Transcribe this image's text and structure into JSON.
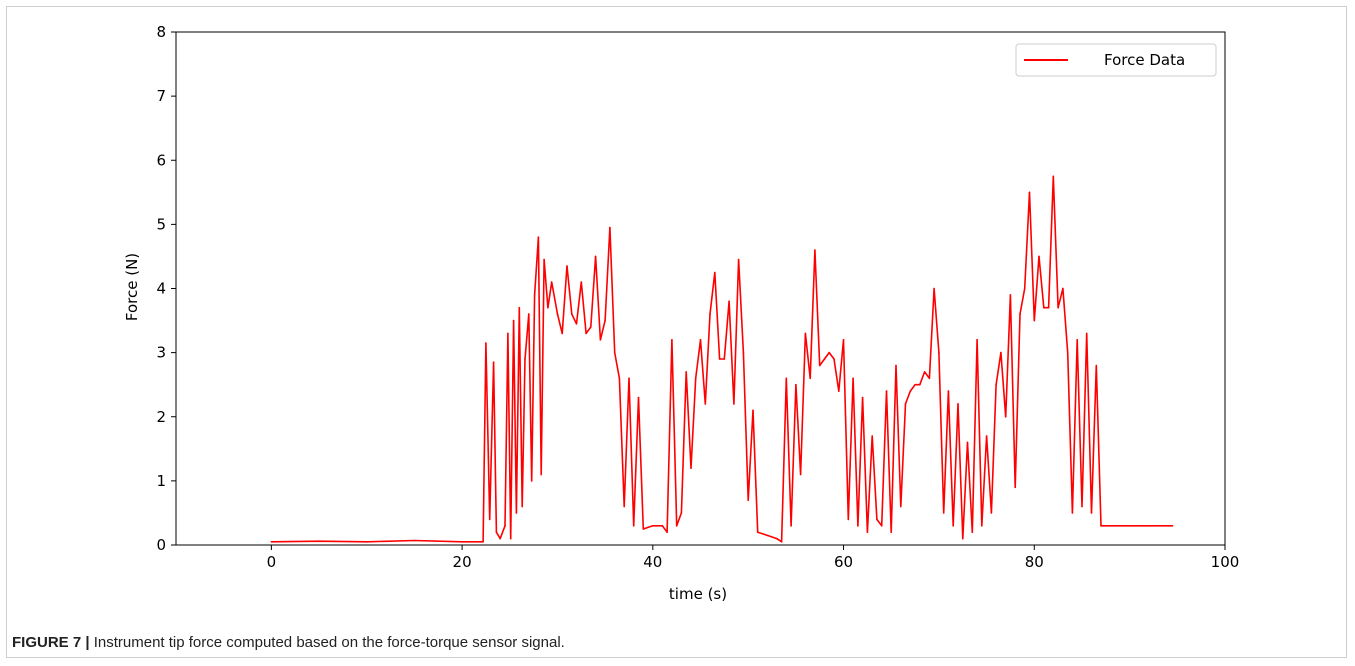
{
  "caption": {
    "label": "FIGURE 7 |",
    "text": "Instrument tip force computed based on the force-torque sensor signal."
  },
  "chart_data": {
    "type": "line",
    "title": "",
    "xlabel": "time (s)",
    "ylabel": "Force (N)",
    "xlim": [
      -10,
      100
    ],
    "ylim": [
      0,
      8
    ],
    "x_ticks": [
      0,
      20,
      40,
      60,
      80,
      100
    ],
    "y_ticks": [
      0,
      1,
      2,
      3,
      4,
      5,
      6,
      7,
      8
    ],
    "grid": false,
    "legend_position": "top-right",
    "series": [
      {
        "name": "Force Data",
        "color": "#ff0000",
        "x": [
          0,
          5,
          10,
          15,
          20,
          22.2,
          22.5,
          22.9,
          23.3,
          23.6,
          24,
          24.5,
          24.8,
          25.1,
          25.4,
          25.7,
          26,
          26.3,
          26.6,
          27,
          27.3,
          27.6,
          28,
          28.3,
          28.6,
          29,
          29.4,
          30,
          30.5,
          31,
          31.5,
          32,
          32.5,
          33,
          33.5,
          34,
          34.5,
          35,
          35.5,
          36,
          36.5,
          37,
          37.5,
          38,
          38.5,
          39,
          40,
          41,
          41.5,
          42,
          42.5,
          43,
          43.5,
          44,
          44.5,
          45,
          45.5,
          46,
          46.5,
          47,
          47.5,
          48,
          48.5,
          49,
          49.5,
          50,
          50.5,
          51,
          52,
          53,
          53.5,
          54,
          54.5,
          55,
          55.5,
          56,
          56.5,
          57,
          57.5,
          58,
          58.5,
          59,
          59.5,
          60,
          60.5,
          61,
          61.5,
          62,
          62.5,
          63,
          63.5,
          64,
          64.5,
          65,
          65.5,
          66,
          66.5,
          67,
          67.5,
          68,
          68.5,
          69,
          69.5,
          70,
          70.5,
          71,
          71.5,
          72,
          72.5,
          73,
          73.5,
          74,
          74.5,
          75,
          75.5,
          76,
          76.5,
          77,
          77.5,
          78,
          78.5,
          79,
          79.5,
          80,
          80.5,
          81,
          81.5,
          82,
          82.5,
          83,
          83.5,
          84,
          84.5,
          85,
          85.5,
          86,
          86.5,
          87,
          88,
          90,
          92,
          94.5
        ],
        "values": [
          0.05,
          0.06,
          0.05,
          0.07,
          0.05,
          0.05,
          3.15,
          0.4,
          2.85,
          0.2,
          0.1,
          0.3,
          3.3,
          0.1,
          3.5,
          0.5,
          3.7,
          0.6,
          2.9,
          3.6,
          1.0,
          3.9,
          4.8,
          1.1,
          4.45,
          3.7,
          4.1,
          3.6,
          3.3,
          4.35,
          3.6,
          3.45,
          4.1,
          3.3,
          3.4,
          4.5,
          3.2,
          3.5,
          4.95,
          3.0,
          2.6,
          0.6,
          2.6,
          0.3,
          2.3,
          0.25,
          0.3,
          0.3,
          0.2,
          3.2,
          0.3,
          0.5,
          2.7,
          1.2,
          2.6,
          3.2,
          2.2,
          3.6,
          4.25,
          2.9,
          2.9,
          3.8,
          2.2,
          4.45,
          3.0,
          0.7,
          2.1,
          0.2,
          0.15,
          0.1,
          0.05,
          2.6,
          0.3,
          2.5,
          1.1,
          3.3,
          2.6,
          4.6,
          2.8,
          2.9,
          3.0,
          2.9,
          2.4,
          3.2,
          0.4,
          2.6,
          0.3,
          2.3,
          0.2,
          1.7,
          0.4,
          0.3,
          2.4,
          0.2,
          2.8,
          0.6,
          2.2,
          2.4,
          2.5,
          2.5,
          2.7,
          2.6,
          4.0,
          3.0,
          0.5,
          2.4,
          0.3,
          2.2,
          0.1,
          1.6,
          0.2,
          3.2,
          0.3,
          1.7,
          0.5,
          2.5,
          3.0,
          2.0,
          3.9,
          0.9,
          3.6,
          4.0,
          5.5,
          3.5,
          4.5,
          3.7,
          3.7,
          5.75,
          3.7,
          4.0,
          3.0,
          0.5,
          3.2,
          0.6,
          3.3,
          0.5,
          2.8,
          0.3,
          0.3,
          0.3,
          0.3,
          0.3
        ]
      }
    ]
  }
}
